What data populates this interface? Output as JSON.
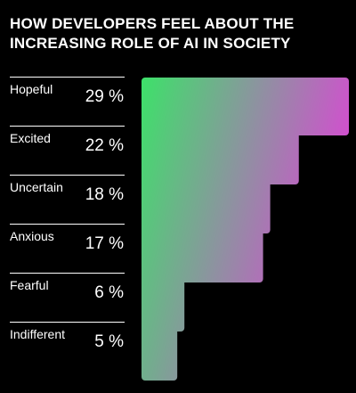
{
  "title_lines": [
    "HOW DEVELOPERS FEEL ABOUT THE",
    "INCREASING ROLE OF AI IN SOCIETY"
  ],
  "colors": {
    "background": "#000000",
    "gradient_start": "#3ee06a",
    "gradient_end": "#d24fcf",
    "divider": "#ffffff",
    "text": "#ffffff"
  },
  "chart_data": {
    "type": "bar",
    "orientation": "horizontal",
    "title": "HOW DEVELOPERS FEEL ABOUT THE INCREASING ROLE OF AI IN SOCIETY",
    "categories": [
      "Hopeful",
      "Excited",
      "Uncertain",
      "Anxious",
      "Fearful",
      "Indifferent"
    ],
    "values": [
      29,
      22,
      18,
      17,
      6,
      5
    ],
    "value_labels": [
      "29 %",
      "22 %",
      "18 %",
      "17 %",
      "6 %",
      "5 %"
    ],
    "unit": "%",
    "xlabel": "",
    "ylabel": "",
    "grid": false,
    "legend": "none"
  }
}
